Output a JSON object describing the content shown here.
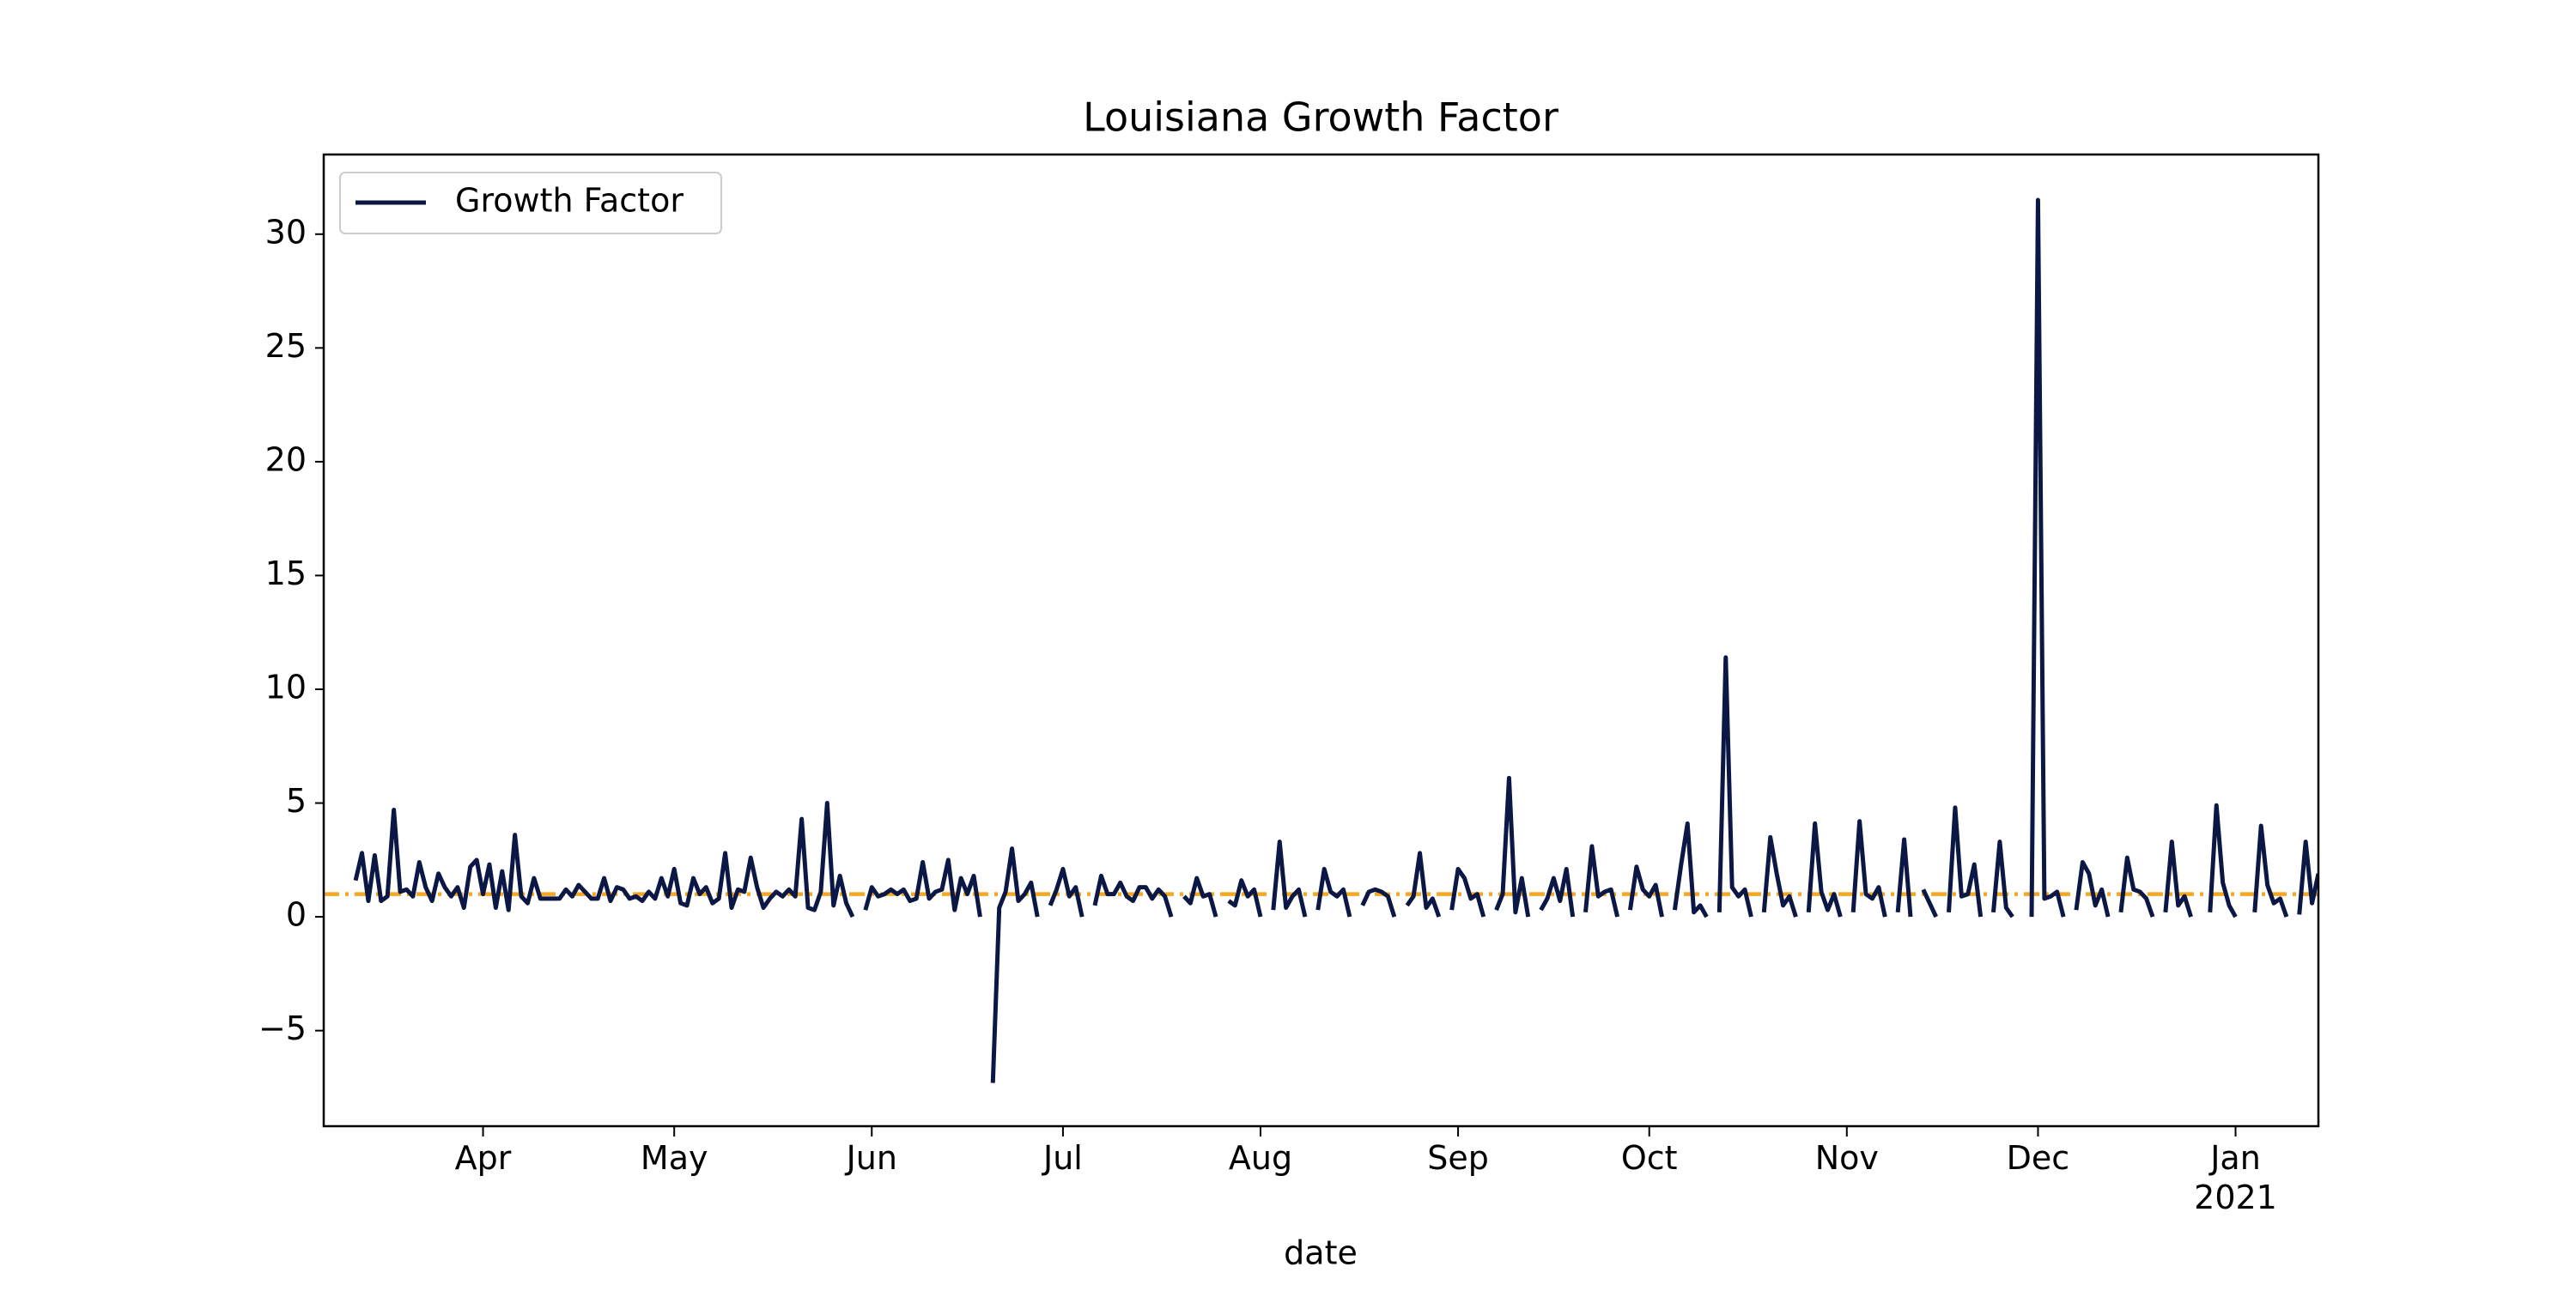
{
  "chart_data": {
    "type": "line",
    "title": "Louisiana Growth Factor",
    "x_label": "date",
    "legend_position": "upper left",
    "hline": {
      "value": 1,
      "color": "#f5a623"
    },
    "xlim": [
      "2020-03-07",
      "2021-01-14"
    ],
    "xticks": [
      {
        "value": "2020-04-01",
        "label": "Apr"
      },
      {
        "value": "2020-05-01",
        "label": "May"
      },
      {
        "value": "2020-06-01",
        "label": "Jun"
      },
      {
        "value": "2020-07-01",
        "label": "Jul"
      },
      {
        "value": "2020-08-01",
        "label": "Aug"
      },
      {
        "value": "2020-09-01",
        "label": "Sep"
      },
      {
        "value": "2020-10-01",
        "label": "Oct"
      },
      {
        "value": "2020-11-01",
        "label": "Nov"
      },
      {
        "value": "2020-12-01",
        "label": "Dec"
      },
      {
        "value": "2021-01-01",
        "label": "Jan 2021"
      }
    ],
    "ylim": [
      -9.2,
      33.5
    ],
    "yticks": [
      {
        "value": -5,
        "label": "−5"
      },
      0,
      5,
      10,
      15,
      20,
      25,
      30
    ],
    "x": [
      "2020-03-12",
      "2020-03-13",
      "2020-03-14",
      "2020-03-15",
      "2020-03-16",
      "2020-03-17",
      "2020-03-18",
      "2020-03-19",
      "2020-03-20",
      "2020-03-21",
      "2020-03-22",
      "2020-03-23",
      "2020-03-24",
      "2020-03-25",
      "2020-03-26",
      "2020-03-27",
      "2020-03-28",
      "2020-03-29",
      "2020-03-30",
      "2020-03-31",
      "2020-04-01",
      "2020-04-02",
      "2020-04-03",
      "2020-04-04",
      "2020-04-05",
      "2020-04-06",
      "2020-04-07",
      "2020-04-08",
      "2020-04-09",
      "2020-04-10",
      "2020-04-11",
      "2020-04-12",
      "2020-04-13",
      "2020-04-14",
      "2020-04-15",
      "2020-04-16",
      "2020-04-17",
      "2020-04-18",
      "2020-04-19",
      "2020-04-20",
      "2020-04-21",
      "2020-04-22",
      "2020-04-23",
      "2020-04-24",
      "2020-04-25",
      "2020-04-26",
      "2020-04-27",
      "2020-04-28",
      "2020-04-29",
      "2020-04-30",
      "2020-05-01",
      "2020-05-02",
      "2020-05-03",
      "2020-05-04",
      "2020-05-05",
      "2020-05-06",
      "2020-05-07",
      "2020-05-08",
      "2020-05-09",
      "2020-05-10",
      "2020-05-11",
      "2020-05-12",
      "2020-05-13",
      "2020-05-14",
      "2020-05-15",
      "2020-05-16",
      "2020-05-17",
      "2020-05-18",
      "2020-05-19",
      "2020-05-20",
      "2020-05-21",
      "2020-05-22",
      "2020-05-23",
      "2020-05-24",
      "2020-05-25",
      "2020-05-26",
      "2020-05-27",
      "2020-05-28",
      "2020-05-29",
      "2020-05-30",
      "2020-05-31",
      "2020-06-01",
      "2020-06-02",
      "2020-06-03",
      "2020-06-04",
      "2020-06-05",
      "2020-06-06",
      "2020-06-07",
      "2020-06-08",
      "2020-06-09",
      "2020-06-10",
      "2020-06-11",
      "2020-06-12",
      "2020-06-13",
      "2020-06-14",
      "2020-06-15",
      "2020-06-16",
      "2020-06-17",
      "2020-06-18",
      "2020-06-19",
      "2020-06-20",
      "2020-06-21",
      "2020-06-22",
      "2020-06-23",
      "2020-06-24",
      "2020-06-25",
      "2020-06-26",
      "2020-06-27",
      "2020-06-28",
      "2020-06-29",
      "2020-06-30",
      "2020-07-01",
      "2020-07-02",
      "2020-07-03",
      "2020-07-04",
      "2020-07-05",
      "2020-07-06",
      "2020-07-07",
      "2020-07-08",
      "2020-07-09",
      "2020-07-10",
      "2020-07-11",
      "2020-07-12",
      "2020-07-13",
      "2020-07-14",
      "2020-07-15",
      "2020-07-16",
      "2020-07-17",
      "2020-07-18",
      "2020-07-19",
      "2020-07-20",
      "2020-07-21",
      "2020-07-22",
      "2020-07-23",
      "2020-07-24",
      "2020-07-25",
      "2020-07-26",
      "2020-07-27",
      "2020-07-28",
      "2020-07-29",
      "2020-07-30",
      "2020-07-31",
      "2020-08-01",
      "2020-08-02",
      "2020-08-03",
      "2020-08-04",
      "2020-08-05",
      "2020-08-06",
      "2020-08-07",
      "2020-08-08",
      "2020-08-09",
      "2020-08-10",
      "2020-08-11",
      "2020-08-12",
      "2020-08-13",
      "2020-08-14",
      "2020-08-15",
      "2020-08-16",
      "2020-08-17",
      "2020-08-18",
      "2020-08-19",
      "2020-08-20",
      "2020-08-21",
      "2020-08-22",
      "2020-08-23",
      "2020-08-24",
      "2020-08-25",
      "2020-08-26",
      "2020-08-27",
      "2020-08-28",
      "2020-08-29",
      "2020-08-30",
      "2020-08-31",
      "2020-09-01",
      "2020-09-02",
      "2020-09-03",
      "2020-09-04",
      "2020-09-05",
      "2020-09-06",
      "2020-09-07",
      "2020-09-08",
      "2020-09-09",
      "2020-09-10",
      "2020-09-11",
      "2020-09-12",
      "2020-09-13",
      "2020-09-14",
      "2020-09-15",
      "2020-09-16",
      "2020-09-17",
      "2020-09-18",
      "2020-09-19",
      "2020-09-20",
      "2020-09-21",
      "2020-09-22",
      "2020-09-23",
      "2020-09-24",
      "2020-09-25",
      "2020-09-26",
      "2020-09-27",
      "2020-09-28",
      "2020-09-29",
      "2020-09-30",
      "2020-10-01",
      "2020-10-02",
      "2020-10-03",
      "2020-10-04",
      "2020-10-05",
      "2020-10-06",
      "2020-10-07",
      "2020-10-08",
      "2020-10-09",
      "2020-10-10",
      "2020-10-11",
      "2020-10-12",
      "2020-10-13",
      "2020-10-14",
      "2020-10-15",
      "2020-10-16",
      "2020-10-17",
      "2020-10-18",
      "2020-10-19",
      "2020-10-20",
      "2020-10-21",
      "2020-10-22",
      "2020-10-23",
      "2020-10-24",
      "2020-10-25",
      "2020-10-26",
      "2020-10-27",
      "2020-10-28",
      "2020-10-29",
      "2020-10-30",
      "2020-10-31",
      "2020-11-01",
      "2020-11-02",
      "2020-11-03",
      "2020-11-04",
      "2020-11-05",
      "2020-11-06",
      "2020-11-07",
      "2020-11-08",
      "2020-11-09",
      "2020-11-10",
      "2020-11-11",
      "2020-11-12",
      "2020-11-13",
      "2020-11-14",
      "2020-11-15",
      "2020-11-16",
      "2020-11-17",
      "2020-11-18",
      "2020-11-19",
      "2020-11-20",
      "2020-11-21",
      "2020-11-22",
      "2020-11-23",
      "2020-11-24",
      "2020-11-25",
      "2020-11-26",
      "2020-11-27",
      "2020-11-28",
      "2020-11-29",
      "2020-11-30",
      "2020-12-01",
      "2020-12-02",
      "2020-12-03",
      "2020-12-04",
      "2020-12-05",
      "2020-12-06",
      "2020-12-07",
      "2020-12-08",
      "2020-12-09",
      "2020-12-10",
      "2020-12-11",
      "2020-12-12",
      "2020-12-13",
      "2020-12-14",
      "2020-12-15",
      "2020-12-16",
      "2020-12-17",
      "2020-12-18",
      "2020-12-19",
      "2020-12-20",
      "2020-12-21",
      "2020-12-22",
      "2020-12-23",
      "2020-12-24",
      "2020-12-25",
      "2020-12-26",
      "2020-12-27",
      "2020-12-28",
      "2020-12-29",
      "2020-12-30",
      "2020-12-31",
      "2021-01-01",
      "2021-01-02",
      "2021-01-03",
      "2021-01-04",
      "2021-01-05",
      "2021-01-06",
      "2021-01-07",
      "2021-01-08",
      "2021-01-09",
      "2021-01-10",
      "2021-01-11",
      "2021-01-12",
      "2021-01-13",
      "2021-01-14"
    ],
    "series": [
      {
        "name": "Growth Factor",
        "color": "#0b1744",
        "values": [
          1.6,
          2.8,
          0.7,
          2.7,
          0.7,
          0.9,
          4.7,
          1.1,
          1.2,
          0.9,
          2.4,
          1.3,
          0.7,
          1.9,
          1.3,
          0.9,
          1.3,
          0.4,
          2.2,
          2.5,
          1.0,
          2.3,
          0.4,
          2.0,
          0.3,
          3.6,
          0.9,
          0.6,
          1.7,
          0.8,
          0.8,
          0.8,
          0.8,
          1.2,
          0.9,
          1.4,
          1.1,
          0.8,
          0.8,
          1.7,
          0.7,
          1.3,
          1.2,
          0.8,
          0.9,
          0.7,
          1.1,
          0.8,
          1.7,
          0.9,
          2.1,
          0.6,
          0.5,
          1.7,
          1.0,
          1.3,
          0.6,
          0.8,
          2.8,
          0.4,
          1.2,
          1.1,
          2.6,
          1.3,
          0.4,
          0.8,
          1.1,
          0.9,
          1.2,
          0.9,
          4.3,
          0.4,
          0.3,
          1.1,
          5.0,
          0.5,
          1.8,
          0.6,
          0.0,
          null,
          0.3,
          1.3,
          0.9,
          1.0,
          1.2,
          1.0,
          1.2,
          0.7,
          0.8,
          2.4,
          0.8,
          1.1,
          1.2,
          2.5,
          0.3,
          1.7,
          1.0,
          1.8,
          0.0,
          null,
          -7.3,
          0.4,
          1.1,
          3.0,
          0.7,
          1.0,
          1.5,
          0.0,
          null,
          0.5,
          1.2,
          2.1,
          0.9,
          1.3,
          0.0,
          null,
          0.5,
          1.8,
          1.0,
          1.0,
          1.5,
          0.9,
          0.7,
          1.3,
          1.3,
          0.8,
          1.2,
          0.9,
          0.0,
          null,
          0.9,
          0.6,
          1.7,
          0.9,
          1.0,
          0.0,
          null,
          0.7,
          0.5,
          1.6,
          0.9,
          1.2,
          0.0,
          null,
          0.3,
          3.3,
          0.4,
          0.9,
          1.2,
          0.0,
          null,
          0.3,
          2.1,
          1.1,
          0.9,
          1.2,
          0.0,
          null,
          0.5,
          1.1,
          1.2,
          1.1,
          0.9,
          0.0,
          null,
          0.5,
          0.9,
          2.8,
          0.4,
          0.8,
          0.0,
          null,
          0.3,
          2.1,
          1.7,
          0.8,
          1.0,
          0.0,
          null,
          0.3,
          1.0,
          6.1,
          0.2,
          1.7,
          0.0,
          null,
          0.3,
          0.8,
          1.7,
          0.7,
          2.1,
          0.0,
          null,
          0.2,
          3.1,
          0.9,
          1.1,
          1.2,
          0.0,
          null,
          0.3,
          2.2,
          1.2,
          0.9,
          1.4,
          0.0,
          null,
          0.3,
          2.3,
          4.1,
          0.2,
          0.5,
          0.0,
          null,
          0.2,
          11.4,
          1.3,
          0.9,
          1.2,
          0.0,
          null,
          0.2,
          3.5,
          1.9,
          0.5,
          0.9,
          0.0,
          null,
          0.2,
          4.1,
          1.1,
          0.3,
          1.0,
          0.0,
          null,
          0.2,
          4.2,
          1.0,
          0.8,
          1.3,
          0.0,
          null,
          0.2,
          3.4,
          0.0,
          null,
          1.2,
          0.6,
          0.0,
          null,
          0.2,
          4.8,
          0.9,
          1.0,
          2.3,
          0.0,
          null,
          0.2,
          3.3,
          0.4,
          0.0,
          null,
          null,
          0.0,
          31.5,
          0.8,
          0.9,
          1.1,
          0.0,
          null,
          0.3,
          2.4,
          1.9,
          0.5,
          1.2,
          0.0,
          null,
          0.2,
          2.6,
          1.2,
          1.1,
          0.8,
          0.0,
          null,
          0.2,
          3.3,
          0.5,
          0.9,
          0.0,
          null,
          null,
          0.2,
          4.9,
          1.5,
          0.5,
          0.0,
          null,
          null,
          0.2,
          4.0,
          1.4,
          0.6,
          0.8,
          0.0,
          null,
          0.1,
          3.3,
          0.6,
          1.9
        ]
      }
    ]
  }
}
